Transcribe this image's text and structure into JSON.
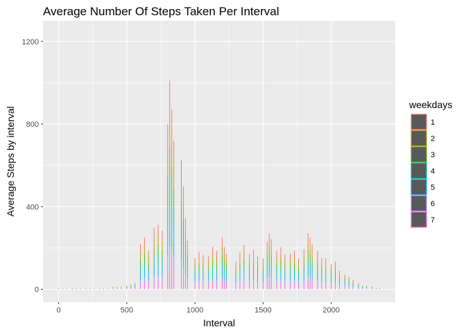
{
  "chart_data": {
    "type": "bar",
    "stacked": true,
    "title": "Average Number Of Steps Taken Per Interval",
    "xlabel": "Interval",
    "ylabel": "Average Steps by interval",
    "xlim": [
      -115,
      2470
    ],
    "ylim": [
      -62,
      1300
    ],
    "x_ticks": [
      0,
      500,
      1000,
      1500,
      2000
    ],
    "y_ticks": [
      0,
      400,
      800,
      1200
    ],
    "bar_width": 5,
    "grid": true,
    "background": "#EBEBEB",
    "legend": {
      "title": "weekdays",
      "position": "right"
    },
    "x": [
      0,
      30,
      60,
      100,
      130,
      160,
      200,
      230,
      260,
      300,
      330,
      360,
      400,
      430,
      460,
      500,
      530,
      560,
      600,
      630,
      660,
      700,
      730,
      760,
      800,
      815,
      830,
      845,
      900,
      915,
      930,
      945,
      1000,
      1030,
      1060,
      1100,
      1130,
      1160,
      1200,
      1215,
      1230,
      1300,
      1330,
      1360,
      1400,
      1430,
      1460,
      1500,
      1530,
      1545,
      1560,
      1600,
      1630,
      1660,
      1700,
      1730,
      1760,
      1800,
      1830,
      1845,
      1860,
      1900,
      1930,
      1960,
      2000,
      2030,
      2060,
      2100,
      2130,
      2160,
      2200,
      2230,
      2260,
      2300,
      2330,
      2355
    ],
    "series": [
      {
        "name": "1",
        "color": "#F8766D",
        "values": [
          1,
          1,
          0,
          1,
          0,
          0,
          1,
          0,
          1,
          0,
          1,
          0,
          2,
          2,
          1,
          3,
          4,
          5,
          38,
          42,
          30,
          52,
          50,
          48,
          140,
          180,
          150,
          120,
          105,
          85,
          60,
          40,
          25,
          30,
          28,
          26,
          35,
          30,
          42,
          34,
          28,
          22,
          30,
          35,
          28,
          32,
          26,
          25,
          38,
          45,
          40,
          30,
          34,
          28,
          28,
          30,
          24,
          32,
          45,
          40,
          36,
          30,
          25,
          25,
          20,
          22,
          15,
          12,
          10,
          8,
          5,
          3,
          3,
          2,
          1,
          1
        ]
      },
      {
        "name": "2",
        "color": "#C49A00",
        "values": [
          1,
          1,
          1,
          0,
          1,
          0,
          0,
          1,
          0,
          1,
          0,
          1,
          2,
          1,
          2,
          2,
          3,
          4,
          32,
          38,
          28,
          45,
          48,
          42,
          120,
          150,
          130,
          110,
          95,
          75,
          50,
          35,
          22,
          26,
          24,
          24,
          30,
          28,
          36,
          30,
          25,
          20,
          26,
          32,
          25,
          28,
          24,
          22,
          34,
          40,
          36,
          28,
          30,
          25,
          26,
          28,
          22,
          28,
          40,
          38,
          32,
          28,
          22,
          22,
          18,
          20,
          13,
          10,
          9,
          7,
          4,
          3,
          2,
          2,
          1,
          1
        ]
      },
      {
        "name": "3",
        "color": "#53B400",
        "values": [
          1,
          0,
          1,
          1,
          0,
          1,
          1,
          0,
          1,
          0,
          1,
          0,
          1,
          2,
          1,
          2,
          3,
          4,
          30,
          36,
          26,
          42,
          44,
          40,
          110,
          140,
          120,
          100,
          90,
          70,
          48,
          32,
          20,
          24,
          22,
          22,
          28,
          26,
          34,
          28,
          24,
          18,
          24,
          30,
          24,
          26,
          22,
          20,
          32,
          38,
          34,
          26,
          28,
          24,
          24,
          26,
          20,
          26,
          38,
          36,
          30,
          26,
          20,
          20,
          17,
          18,
          12,
          10,
          8,
          6,
          4,
          2,
          2,
          2,
          1,
          1
        ]
      },
      {
        "name": "4",
        "color": "#00C094",
        "values": [
          1,
          1,
          0,
          1,
          1,
          0,
          1,
          1,
          0,
          1,
          0,
          1,
          2,
          1,
          2,
          3,
          3,
          5,
          35,
          40,
          30,
          48,
          50,
          46,
          130,
          160,
          140,
          115,
          100,
          80,
          55,
          38,
          24,
          28,
          26,
          25,
          32,
          30,
          40,
          32,
          27,
          21,
          28,
          34,
          27,
          30,
          25,
          23,
          36,
          42,
          38,
          30,
          32,
          26,
          27,
          29,
          23,
          30,
          42,
          40,
          34,
          30,
          24,
          24,
          19,
          21,
          14,
          11,
          9,
          7,
          5,
          3,
          3,
          2,
          1,
          1
        ]
      },
      {
        "name": "5",
        "color": "#00B6EB",
        "values": [
          1,
          1,
          1,
          0,
          0,
          1,
          0,
          1,
          1,
          0,
          1,
          1,
          2,
          2,
          1,
          2,
          3,
          4,
          36,
          40,
          30,
          48,
          52,
          46,
          135,
          170,
          145,
          118,
          100,
          80,
          56,
          38,
          24,
          29,
          26,
          25,
          33,
          29,
          40,
          32,
          27,
          21,
          29,
          34,
          27,
          30,
          25,
          24,
          37,
          43,
          38,
          29,
          32,
          27,
          27,
          29,
          23,
          31,
          43,
          39,
          35,
          29,
          24,
          24,
          19,
          21,
          14,
          11,
          9,
          7,
          5,
          3,
          3,
          2,
          1,
          1
        ]
      },
      {
        "name": "6",
        "color": "#A58AFF",
        "values": [
          1,
          0,
          1,
          1,
          1,
          0,
          1,
          0,
          1,
          1,
          0,
          1,
          1,
          2,
          2,
          2,
          3,
          4,
          22,
          26,
          20,
          30,
          34,
          30,
          80,
          100,
          90,
          75,
          65,
          52,
          36,
          26,
          18,
          20,
          19,
          18,
          23,
          21,
          28,
          23,
          19,
          15,
          20,
          24,
          19,
          22,
          18,
          17,
          26,
          30,
          27,
          21,
          23,
          19,
          19,
          21,
          17,
          22,
          30,
          28,
          24,
          21,
          17,
          17,
          14,
          15,
          10,
          8,
          7,
          5,
          3,
          2,
          2,
          1,
          1,
          1
        ]
      },
      {
        "name": "7",
        "color": "#FB61D7",
        "values": [
          1,
          1,
          0,
          1,
          0,
          1,
          1,
          1,
          0,
          0,
          1,
          0,
          2,
          1,
          2,
          3,
          4,
          5,
          25,
          28,
          22,
          32,
          35,
          32,
          85,
          110,
          95,
          80,
          70,
          55,
          38,
          28,
          19,
          22,
          20,
          20,
          25,
          22,
          30,
          25,
          21,
          16,
          22,
          26,
          21,
          23,
          19,
          18,
          28,
          32,
          29,
          22,
          25,
          20,
          21,
          23,
          18,
          24,
          32,
          30,
          26,
          22,
          18,
          18,
          15,
          16,
          11,
          9,
          7,
          5,
          3,
          2,
          2,
          2,
          1,
          1
        ]
      }
    ]
  }
}
